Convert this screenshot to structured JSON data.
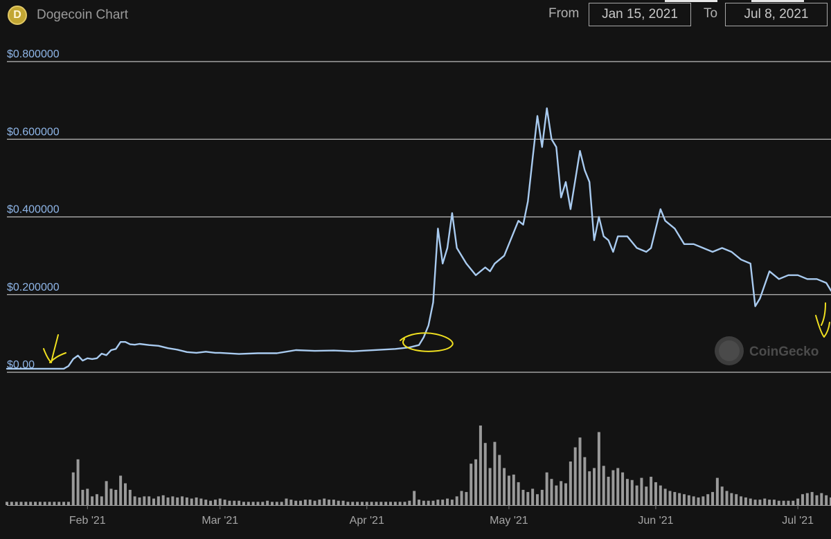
{
  "header": {
    "title": "Dogecoin Chart",
    "logo_letter": "D",
    "from_label": "From",
    "from_value": "Jan 15, 2021",
    "to_label": "To",
    "to_value": "Jul 8, 2021"
  },
  "watermark": "CoinGecko",
  "colors": {
    "background": "#131313",
    "price_line": "#a9cbf0",
    "axis_label": "#8fb6e8",
    "volume_bar": "#9a9a9a",
    "annotation": "#f0e020",
    "logo": "#c2a633"
  },
  "chart_data": [
    {
      "type": "line",
      "title": "Dogecoin Chart",
      "x_range": [
        "2021-01-15",
        "2021-07-08"
      ],
      "y_ticks": [
        {
          "value": 0,
          "label": "$0.00"
        },
        {
          "value": 0.2,
          "label": "$0.200000"
        },
        {
          "value": 0.4,
          "label": "$0.400000"
        },
        {
          "value": 0.6,
          "label": "$0.600000"
        },
        {
          "value": 0.8,
          "label": "$0.800000"
        }
      ],
      "ylim": [
        0,
        0.8
      ],
      "x_ticks": [
        {
          "date": "2021-02-01",
          "label": "Feb '21"
        },
        {
          "date": "2021-03-01",
          "label": "Mar '21"
        },
        {
          "date": "2021-04-01",
          "label": "Apr '21"
        },
        {
          "date": "2021-05-01",
          "label": "May '21"
        },
        {
          "date": "2021-06-01",
          "label": "Jun '21"
        },
        {
          "date": "2021-07-01",
          "label": "Jul '21"
        }
      ],
      "grid": "horizontal",
      "series": [
        {
          "points": [
            [
              "2021-01-15",
              0.009
            ],
            [
              "2021-01-20",
              0.009
            ],
            [
              "2021-01-27",
              0.009
            ],
            [
              "2021-01-28",
              0.016
            ],
            [
              "2021-01-29",
              0.034
            ],
            [
              "2021-01-30",
              0.043
            ],
            [
              "2021-01-31",
              0.03
            ],
            [
              "2021-02-01",
              0.036
            ],
            [
              "2021-02-02",
              0.034
            ],
            [
              "2021-02-03",
              0.036
            ],
            [
              "2021-02-04",
              0.048
            ],
            [
              "2021-02-05",
              0.044
            ],
            [
              "2021-02-06",
              0.057
            ],
            [
              "2021-02-07",
              0.06
            ],
            [
              "2021-02-08",
              0.078
            ],
            [
              "2021-02-09",
              0.078
            ],
            [
              "2021-02-10",
              0.072
            ],
            [
              "2021-02-11",
              0.071
            ],
            [
              "2021-02-12",
              0.073
            ],
            [
              "2021-02-14",
              0.07
            ],
            [
              "2021-02-16",
              0.068
            ],
            [
              "2021-02-18",
              0.062
            ],
            [
              "2021-02-20",
              0.058
            ],
            [
              "2021-02-22",
              0.052
            ],
            [
              "2021-02-24",
              0.05
            ],
            [
              "2021-02-26",
              0.053
            ],
            [
              "2021-02-28",
              0.05
            ],
            [
              "2021-03-01",
              0.05
            ],
            [
              "2021-03-05",
              0.047
            ],
            [
              "2021-03-09",
              0.049
            ],
            [
              "2021-03-13",
              0.049
            ],
            [
              "2021-03-17",
              0.057
            ],
            [
              "2021-03-21",
              0.055
            ],
            [
              "2021-03-25",
              0.056
            ],
            [
              "2021-03-29",
              0.054
            ],
            [
              "2021-04-01",
              0.056
            ],
            [
              "2021-04-04",
              0.058
            ],
            [
              "2021-04-07",
              0.06
            ],
            [
              "2021-04-10",
              0.064
            ],
            [
              "2021-04-12",
              0.07
            ],
            [
              "2021-04-13",
              0.09
            ],
            [
              "2021-04-14",
              0.12
            ],
            [
              "2021-04-15",
              0.18
            ],
            [
              "2021-04-16",
              0.37
            ],
            [
              "2021-04-17",
              0.28
            ],
            [
              "2021-04-18",
              0.32
            ],
            [
              "2021-04-19",
              0.41
            ],
            [
              "2021-04-20",
              0.32
            ],
            [
              "2021-04-22",
              0.28
            ],
            [
              "2021-04-24",
              0.25
            ],
            [
              "2021-04-26",
              0.27
            ],
            [
              "2021-04-27",
              0.26
            ],
            [
              "2021-04-28",
              0.28
            ],
            [
              "2021-04-30",
              0.3
            ],
            [
              "2021-05-01",
              0.33
            ],
            [
              "2021-05-03",
              0.39
            ],
            [
              "2021-05-04",
              0.38
            ],
            [
              "2021-05-05",
              0.44
            ],
            [
              "2021-05-06",
              0.55
            ],
            [
              "2021-05-07",
              0.66
            ],
            [
              "2021-05-08",
              0.58
            ],
            [
              "2021-05-09",
              0.68
            ],
            [
              "2021-05-10",
              0.6
            ],
            [
              "2021-05-11",
              0.58
            ],
            [
              "2021-05-12",
              0.45
            ],
            [
              "2021-05-13",
              0.49
            ],
            [
              "2021-05-14",
              0.42
            ],
            [
              "2021-05-16",
              0.57
            ],
            [
              "2021-05-17",
              0.52
            ],
            [
              "2021-05-18",
              0.49
            ],
            [
              "2021-05-19",
              0.34
            ],
            [
              "2021-05-20",
              0.4
            ],
            [
              "2021-05-21",
              0.35
            ],
            [
              "2021-05-22",
              0.34
            ],
            [
              "2021-05-23",
              0.31
            ],
            [
              "2021-05-24",
              0.35
            ],
            [
              "2021-05-26",
              0.35
            ],
            [
              "2021-05-28",
              0.32
            ],
            [
              "2021-05-30",
              0.31
            ],
            [
              "2021-05-31",
              0.32
            ],
            [
              "2021-06-02",
              0.42
            ],
            [
              "2021-06-03",
              0.39
            ],
            [
              "2021-06-05",
              0.37
            ],
            [
              "2021-06-07",
              0.33
            ],
            [
              "2021-06-09",
              0.33
            ],
            [
              "2021-06-11",
              0.32
            ],
            [
              "2021-06-13",
              0.31
            ],
            [
              "2021-06-15",
              0.32
            ],
            [
              "2021-06-17",
              0.31
            ],
            [
              "2021-06-19",
              0.29
            ],
            [
              "2021-06-21",
              0.28
            ],
            [
              "2021-06-22",
              0.17
            ],
            [
              "2021-06-23",
              0.19
            ],
            [
              "2021-06-25",
              0.26
            ],
            [
              "2021-06-27",
              0.24
            ],
            [
              "2021-06-29",
              0.25
            ],
            [
              "2021-07-01",
              0.25
            ],
            [
              "2021-07-03",
              0.24
            ],
            [
              "2021-07-05",
              0.24
            ],
            [
              "2021-07-07",
              0.23
            ],
            [
              "2021-07-08",
              0.21
            ]
          ]
        }
      ]
    },
    {
      "type": "bar",
      "x_range": [
        "2021-01-15",
        "2021-07-08"
      ],
      "values": [
        0.03,
        0.03,
        0.03,
        0.03,
        0.03,
        0.03,
        0.03,
        0.03,
        0.03,
        0.03,
        0.03,
        0.03,
        0.03,
        0.03,
        0.3,
        0.42,
        0.14,
        0.15,
        0.08,
        0.1,
        0.08,
        0.22,
        0.15,
        0.14,
        0.27,
        0.2,
        0.14,
        0.08,
        0.07,
        0.08,
        0.08,
        0.06,
        0.08,
        0.09,
        0.07,
        0.08,
        0.07,
        0.08,
        0.07,
        0.06,
        0.07,
        0.06,
        0.05,
        0.04,
        0.05,
        0.06,
        0.05,
        0.04,
        0.04,
        0.04,
        0.03,
        0.03,
        0.03,
        0.03,
        0.03,
        0.04,
        0.03,
        0.03,
        0.03,
        0.06,
        0.05,
        0.04,
        0.04,
        0.05,
        0.05,
        0.04,
        0.05,
        0.06,
        0.05,
        0.05,
        0.04,
        0.04,
        0.03,
        0.03,
        0.03,
        0.03,
        0.03,
        0.03,
        0.03,
        0.03,
        0.03,
        0.03,
        0.03,
        0.03,
        0.03,
        0.04,
        0.13,
        0.05,
        0.04,
        0.04,
        0.04,
        0.05,
        0.05,
        0.06,
        0.05,
        0.08,
        0.13,
        0.12,
        0.38,
        0.42,
        0.73,
        0.57,
        0.34,
        0.58,
        0.46,
        0.34,
        0.27,
        0.28,
        0.21,
        0.14,
        0.12,
        0.15,
        0.1,
        0.14,
        0.3,
        0.24,
        0.18,
        0.22,
        0.2,
        0.4,
        0.53,
        0.62,
        0.44,
        0.31,
        0.34,
        0.67,
        0.36,
        0.26,
        0.32,
        0.34,
        0.3,
        0.24,
        0.23,
        0.18,
        0.25,
        0.17,
        0.26,
        0.21,
        0.18,
        0.15,
        0.13,
        0.12,
        0.11,
        0.1,
        0.09,
        0.08,
        0.07,
        0.08,
        0.1,
        0.12,
        0.25,
        0.17,
        0.13,
        0.11,
        0.1,
        0.08,
        0.07,
        0.06,
        0.05,
        0.05,
        0.06,
        0.05,
        0.05,
        0.04,
        0.04,
        0.04,
        0.04,
        0.06,
        0.1,
        0.11,
        0.12,
        0.09,
        0.11,
        0.09,
        0.07,
        0.05,
        0.05,
        0.04,
        0.04,
        0.04,
        0.05,
        0.04,
        0.04,
        0.03,
        0.03
      ]
    }
  ]
}
